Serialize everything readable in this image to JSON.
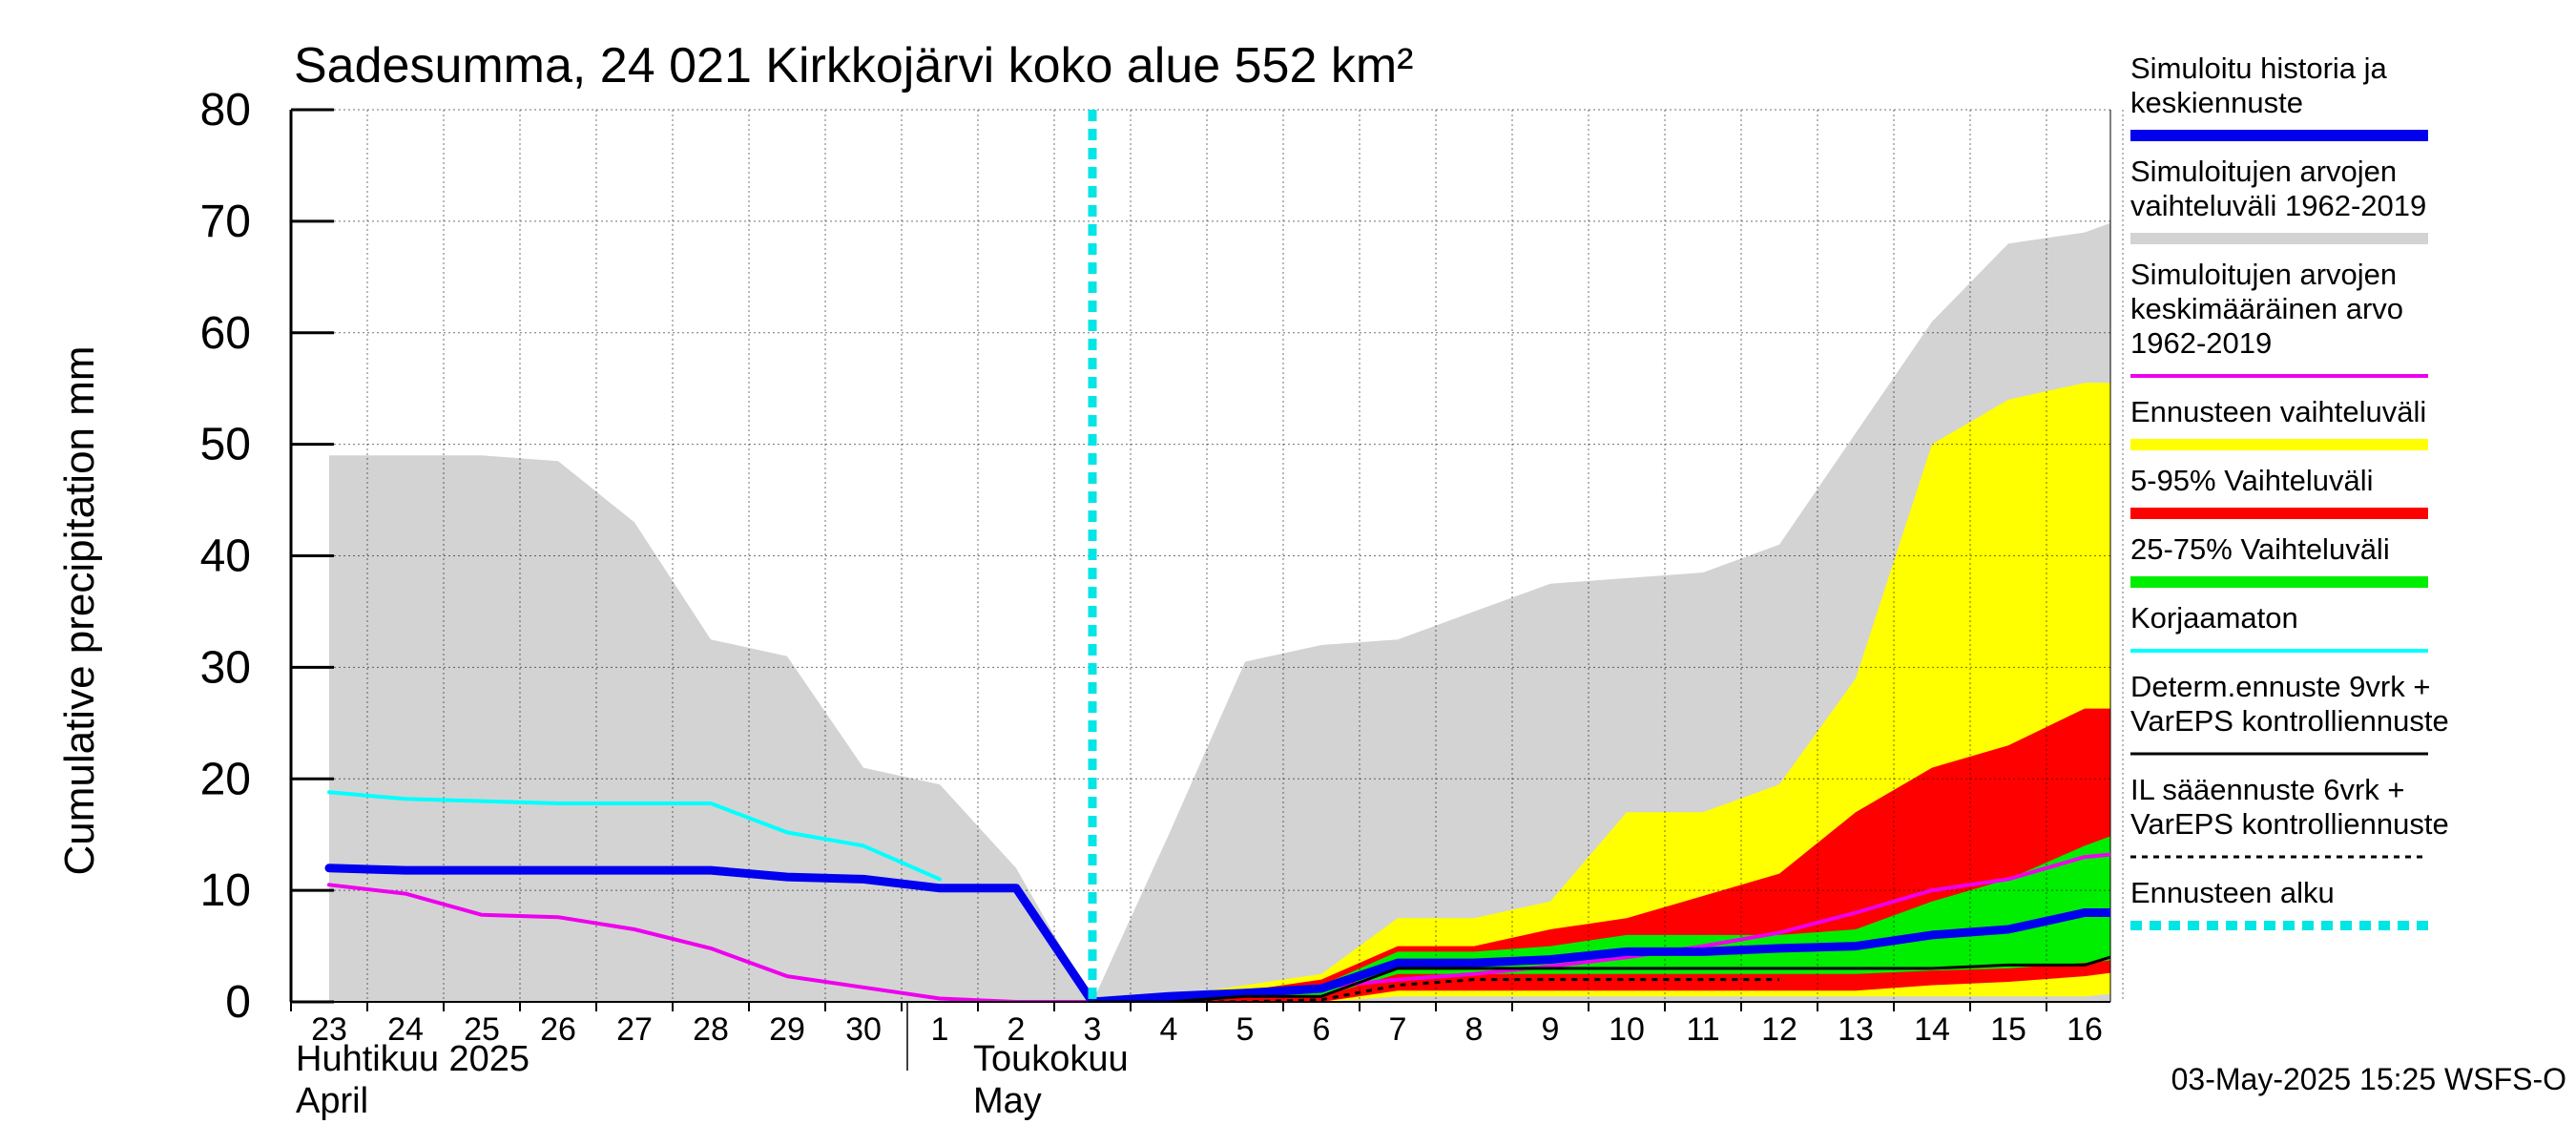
{
  "chart_data": {
    "type": "area",
    "title": "Sadesumma, 24 021 Kirkkojärvi koko alue 552 km²",
    "ylabel": "Cumulative precipitation   mm",
    "ylim": [
      0,
      80
    ],
    "yticks": [
      0,
      10,
      20,
      30,
      40,
      50,
      60,
      70,
      80
    ],
    "grid": true,
    "legend_position": "right",
    "x_tick_labels": [
      "23",
      "24",
      "25",
      "26",
      "27",
      "28",
      "29",
      "30",
      "1",
      "2",
      "3",
      "4",
      "5",
      "6",
      "7",
      "8",
      "9",
      "10",
      "11",
      "12",
      "13",
      "14",
      "15",
      "16"
    ],
    "month_labels": {
      "april_fi": "Huhtikuu  2025",
      "april_en": "April",
      "may_fi": "Toukokuu",
      "may_en": "May"
    },
    "footer": "03-May-2025 15:25 WSFS-O",
    "forecast_start_day": 10,
    "series": [
      {
        "name": "Simuloitujen arvojen vaihteluväli 1962-2019",
        "kind": "band",
        "color": "#d3d3d3",
        "x": [
          0,
          1,
          2,
          3,
          4,
          5,
          6,
          7,
          8,
          9,
          10,
          11,
          12,
          13,
          14,
          15,
          16,
          17,
          18,
          19,
          20,
          21,
          22,
          23,
          23.8
        ],
        "upper": [
          49,
          49,
          49,
          48.5,
          43,
          32.5,
          31,
          21,
          19.5,
          12,
          0,
          15,
          30.5,
          32,
          32.5,
          35,
          37.5,
          38,
          38.5,
          41,
          51,
          61,
          68,
          69,
          71
        ],
        "lower": [
          0,
          0,
          0,
          0,
          0,
          0,
          0,
          0,
          0,
          0,
          0,
          0,
          0,
          0,
          0,
          0,
          0,
          0,
          0,
          0,
          0,
          0,
          0,
          0,
          0
        ]
      },
      {
        "name": "Ennusteen vaihteluväli",
        "kind": "band",
        "color": "#ffff00",
        "x": [
          10,
          11,
          12,
          13,
          14,
          15,
          16,
          17,
          18,
          19,
          20,
          21,
          22,
          23,
          23.8
        ],
        "upper": [
          0,
          0.5,
          1.5,
          2.5,
          7.5,
          7.5,
          9,
          17,
          17,
          19.5,
          29,
          50,
          54,
          55.5,
          55.5
        ],
        "lower": [
          0,
          0,
          0,
          0,
          0.5,
          0.5,
          0.5,
          0.5,
          0.5,
          0.5,
          0.5,
          0.5,
          0.5,
          0.5,
          1
        ]
      },
      {
        "name": "5-95% Vaihteluväli",
        "kind": "band",
        "color": "#ff0000",
        "x": [
          10,
          11,
          12,
          13,
          14,
          15,
          16,
          17,
          18,
          19,
          20,
          21,
          22,
          23,
          23.8
        ],
        "upper": [
          0,
          0.5,
          1,
          2,
          5,
          5,
          6.5,
          7.5,
          9.5,
          11.5,
          17,
          21,
          23,
          26.3,
          26.3
        ],
        "lower": [
          0,
          0,
          0,
          0,
          1,
          1,
          1,
          1,
          1,
          1,
          1,
          1.5,
          1.8,
          2.3,
          3
        ]
      },
      {
        "name": "25-75% Vaihteluväli",
        "kind": "band",
        "color": "#00ee00",
        "x": [
          10,
          11,
          12,
          13,
          14,
          15,
          16,
          17,
          18,
          19,
          20,
          21,
          22,
          23,
          23.8
        ],
        "upper": [
          0,
          0.5,
          1,
          1.5,
          4.5,
          4.5,
          5,
          6,
          6,
          6,
          6.5,
          9,
          11,
          14,
          16
        ],
        "lower": [
          0,
          0,
          0.5,
          0.5,
          2.5,
          2.5,
          2.5,
          2.5,
          2.5,
          2.5,
          2.5,
          2.8,
          3,
          3.5,
          4
        ]
      },
      {
        "name": "Simuloitujen arvojen keskimääräinen arvo 1962-2019",
        "kind": "line",
        "color": "#ee00ee",
        "width": 4,
        "x": [
          0,
          1,
          2,
          3,
          4,
          5,
          6,
          7,
          8,
          9,
          10,
          11,
          12,
          13,
          14,
          15,
          16,
          17,
          18,
          19,
          20,
          21,
          22,
          23,
          23.8
        ],
        "y": [
          10.5,
          9.7,
          7.8,
          7.6,
          6.5,
          4.8,
          2.3,
          1.3,
          0.3,
          0,
          0,
          0.3,
          0.8,
          1.3,
          2,
          2.5,
          3.2,
          4,
          5,
          6.2,
          8,
          10,
          11,
          13,
          13.5
        ]
      },
      {
        "name": "Korjaamaton",
        "kind": "line",
        "color": "#00ffff",
        "width": 4,
        "x": [
          0,
          1,
          2,
          3,
          4,
          5,
          6,
          7,
          8
        ],
        "y": [
          18.8,
          18.2,
          18,
          17.8,
          17.8,
          17.8,
          15.2,
          14,
          11
        ]
      },
      {
        "name": "Simuloitu historia ja keskiennuste",
        "kind": "line",
        "color": "#0000ee",
        "width": 9,
        "x": [
          0,
          1,
          2,
          3,
          4,
          5,
          6,
          7,
          8,
          9,
          10,
          11,
          12,
          13,
          14,
          15,
          16,
          17,
          18,
          19,
          20,
          21,
          22,
          23,
          23.8
        ],
        "y": [
          12,
          11.8,
          11.8,
          11.8,
          11.8,
          11.8,
          11.2,
          11,
          10.2,
          10.2,
          0,
          0.5,
          0.8,
          1.2,
          3.5,
          3.5,
          3.8,
          4.5,
          4.5,
          4.8,
          5,
          6,
          6.5,
          8,
          8
        ]
      },
      {
        "name": "Determ.ennuste 9vrk + VarEPS kontrolliennuste",
        "kind": "line",
        "color": "#000000",
        "width": 3,
        "x": [
          10,
          11,
          12,
          13,
          14,
          15,
          16,
          17,
          18,
          19,
          20,
          21,
          22,
          23,
          23.8
        ],
        "y": [
          0,
          0,
          0.5,
          0.5,
          3,
          3,
          3,
          3,
          3,
          3,
          3,
          3,
          3.3,
          3.3,
          5
        ]
      },
      {
        "name": "IL sääennuste 6vrk + VarEPS kontrolliennuste",
        "kind": "dashed",
        "color": "#000000",
        "width": 3,
        "x": [
          10,
          11,
          12,
          13,
          14,
          15,
          16,
          17,
          18,
          19
        ],
        "y": [
          0,
          0,
          0,
          0.2,
          1.5,
          2,
          2,
          2,
          2,
          2
        ]
      }
    ],
    "legend": [
      {
        "label": "Simuloitu historia ja\nkeskiennuste",
        "color": "#0000ee",
        "style": "thick"
      },
      {
        "label": "Simuloitujen arvojen\nvaihteluväli 1962-2019",
        "color": "#d3d3d3",
        "style": "thick"
      },
      {
        "label": "Simuloitujen arvojen\nkeskimääräinen arvo\n    1962-2019",
        "color": "#ee00ee",
        "style": "thin"
      },
      {
        "label": "Ennusteen vaihteluväli",
        "color": "#ffff00",
        "style": "thick"
      },
      {
        "label": "5-95% Vaihteluväli",
        "color": "#ff0000",
        "style": "thick"
      },
      {
        "label": "25-75% Vaihteluväli",
        "color": "#00ee00",
        "style": "thick"
      },
      {
        "label": "Korjaamaton",
        "color": "#00ffff",
        "style": "thin"
      },
      {
        "label": "Determ.ennuste 9vrk +\nVarEPS kontrolliennuste",
        "color": "#000000",
        "style": "hair"
      },
      {
        "label": "IL sääennuste 6vrk  +\n  VarEPS kontrolliennuste",
        "color": "#000000",
        "style": "dashed"
      },
      {
        "label": "Ennusteen alku",
        "color": "#00e5e5",
        "style": "dotted"
      }
    ]
  }
}
